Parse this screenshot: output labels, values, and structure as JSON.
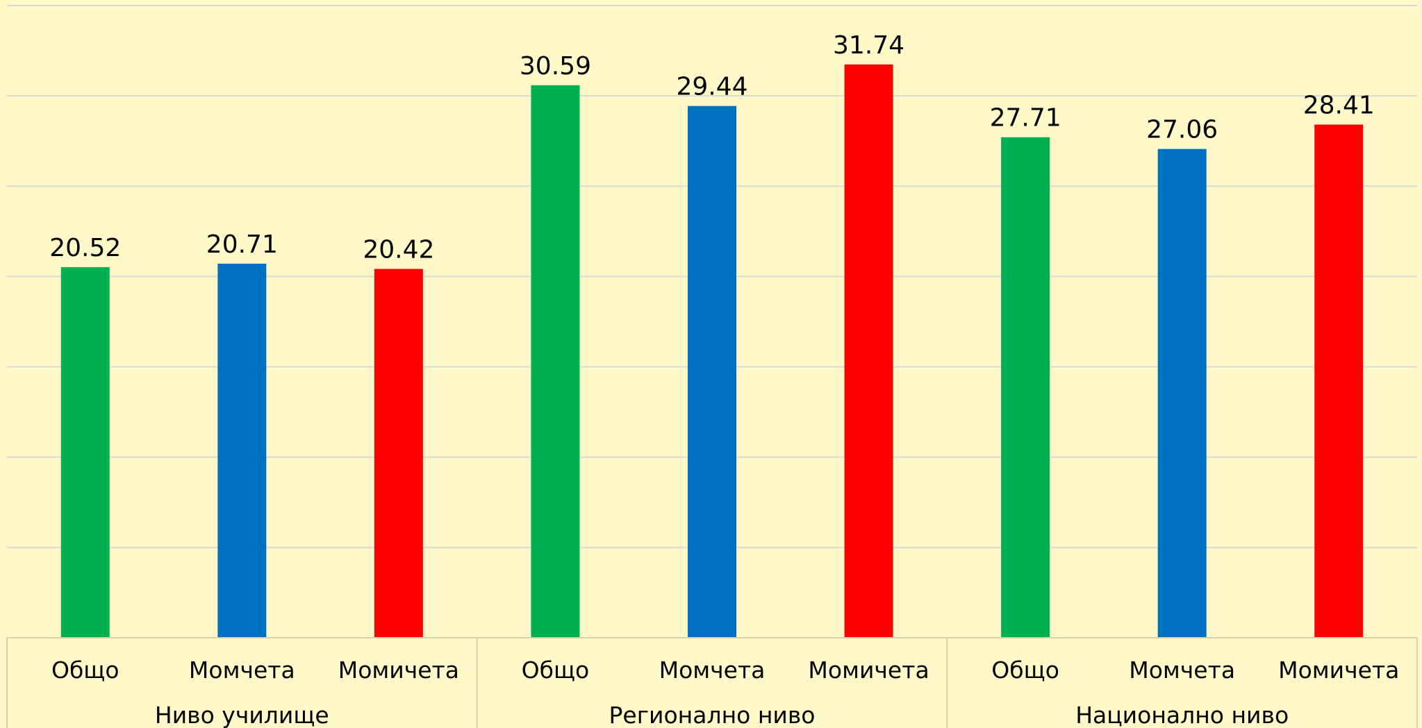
{
  "chart_data": {
    "type": "bar",
    "groups": [
      {
        "name": "Ниво училище",
        "categories": [
          "Общо",
          "Момчета",
          "Момичета"
        ],
        "values": [
          20.52,
          20.71,
          20.42
        ]
      },
      {
        "name": "Регионално ниво",
        "categories": [
          "Общо",
          "Момчета",
          "Момичета"
        ],
        "values": [
          30.59,
          29.44,
          31.74
        ]
      },
      {
        "name": "Национално ниво",
        "categories": [
          "Общо",
          "Момчета",
          "Момичета"
        ],
        "values": [
          27.71,
          27.06,
          28.41
        ]
      }
    ],
    "colors": [
      "#00b050",
      "#0070c0",
      "#ff0000"
    ],
    "ylim": [
      0,
      35
    ],
    "yticks": [
      0,
      5,
      10,
      15,
      20,
      25,
      30,
      35
    ],
    "grid": true
  }
}
